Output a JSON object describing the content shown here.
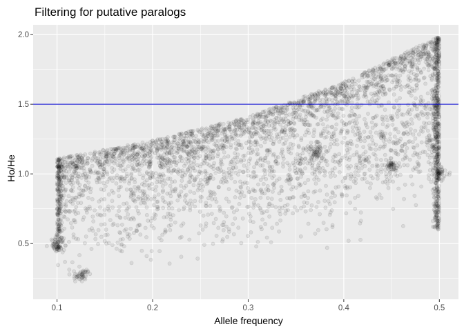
{
  "chart_data": {
    "type": "scatter",
    "title": "Filtering for putative paralogs",
    "xlabel": "Allele frequency",
    "ylabel": "Ho/He",
    "xlim": [
      0.075,
      0.52
    ],
    "ylim": [
      0.1,
      2.07
    ],
    "x_ticks": [
      0.1,
      0.2,
      0.3,
      0.4,
      0.5
    ],
    "x_tick_labels": [
      "0.1",
      "0.2",
      "0.3",
      "0.4",
      "0.5"
    ],
    "y_ticks": [
      0.5,
      1.0,
      1.5,
      2.0
    ],
    "y_tick_labels": [
      "0.5",
      "1.0",
      "1.5",
      "2.0"
    ],
    "grid": true,
    "panel_background": "#ebebeb",
    "hline": {
      "y": 1.5,
      "color": "#0000cc"
    },
    "point_color": "#000000",
    "point_alpha": 0.08,
    "upper_envelope": [
      [
        0.1,
        1.11
      ],
      [
        0.2,
        1.24
      ],
      [
        0.3,
        1.41
      ],
      [
        0.4,
        1.66
      ],
      [
        0.5,
        1.99
      ]
    ],
    "lower_envelope": [
      [
        0.1,
        0.18
      ],
      [
        0.2,
        0.35
      ],
      [
        0.3,
        0.38
      ],
      [
        0.4,
        0.42
      ],
      [
        0.5,
        0.38
      ]
    ],
    "dense_clusters": [
      [
        0.125,
        0.27
      ],
      [
        0.1,
        0.5
      ],
      [
        0.45,
        1.05
      ],
      [
        0.5,
        1.0
      ],
      [
        0.37,
        1.15
      ]
    ]
  }
}
